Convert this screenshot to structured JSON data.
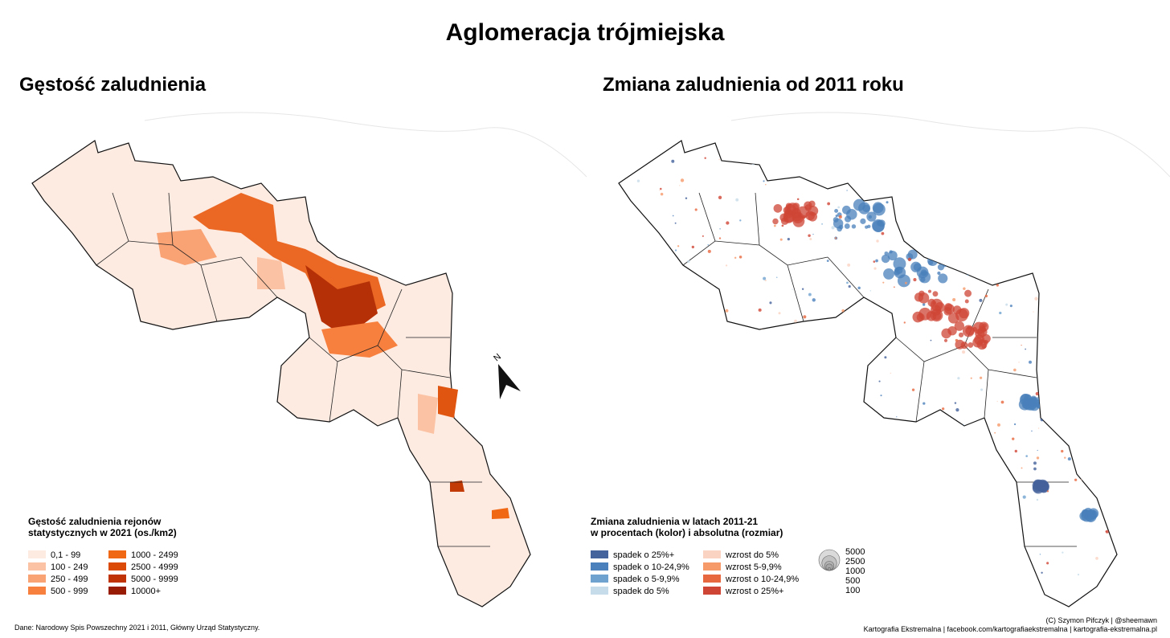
{
  "title": "Aglomeracja trójmiejska",
  "left": {
    "title": "Gęstość zaludnienia",
    "legend": {
      "title": [
        "Gęstość zaludnienia rejonów",
        "statystycznych w 2021 (os./km2)"
      ],
      "items": [
        {
          "label": "0,1 - 99",
          "color": "#fdebe2"
        },
        {
          "label": "100 - 249",
          "color": "#fbc3a4"
        },
        {
          "label": "250 - 499",
          "color": "#f9a274"
        },
        {
          "label": "500 - 999",
          "color": "#f7803f"
        },
        {
          "label": "1000 - 2499",
          "color": "#f06714"
        },
        {
          "label": "2500 - 4999",
          "color": "#dc4a08"
        },
        {
          "label": "5000 - 9999",
          "color": "#bf3305"
        },
        {
          "label": "10000+",
          "color": "#981b03"
        }
      ]
    }
  },
  "right": {
    "title": "Zmiana zaludnienia od 2011 roku",
    "legend": {
      "title": [
        "Zmiana zaludnienia w latach 2011-21",
        "w procentach (kolor) i absolutna (rozmiar)"
      ],
      "items": [
        {
          "label": "spadek o 25%+",
          "color": "#44629b"
        },
        {
          "label": "spadek o 10-24,9%",
          "color": "#4a80bb"
        },
        {
          "label": "spadek o 5-9,9%",
          "color": "#6fa2cf"
        },
        {
          "label": "spadek do 5%",
          "color": "#c7dcea"
        },
        {
          "label": "wzrost do 5%",
          "color": "#fbd3c2"
        },
        {
          "label": "wzrost 5-9,9%",
          "color": "#f69a6a"
        },
        {
          "label": "wzrost o 10-24,9%",
          "color": "#e7683f"
        },
        {
          "label": "wzrost o 25%+",
          "color": "#cf4535"
        }
      ],
      "sizes": [
        5000,
        2500,
        1000,
        500,
        100
      ]
    }
  },
  "north": "N",
  "footer": {
    "source": "Dane: Narodowy Spis Powszechny 2021 i 2011, Główny Urząd Statystyczny.",
    "credit": [
      "(C) Szymon Pifczyk | @sheemawn",
      "Kartografia Ekstremalna | facebook.com/kartografiaekstremalna | kartografia-ekstremalna.pl"
    ]
  }
}
